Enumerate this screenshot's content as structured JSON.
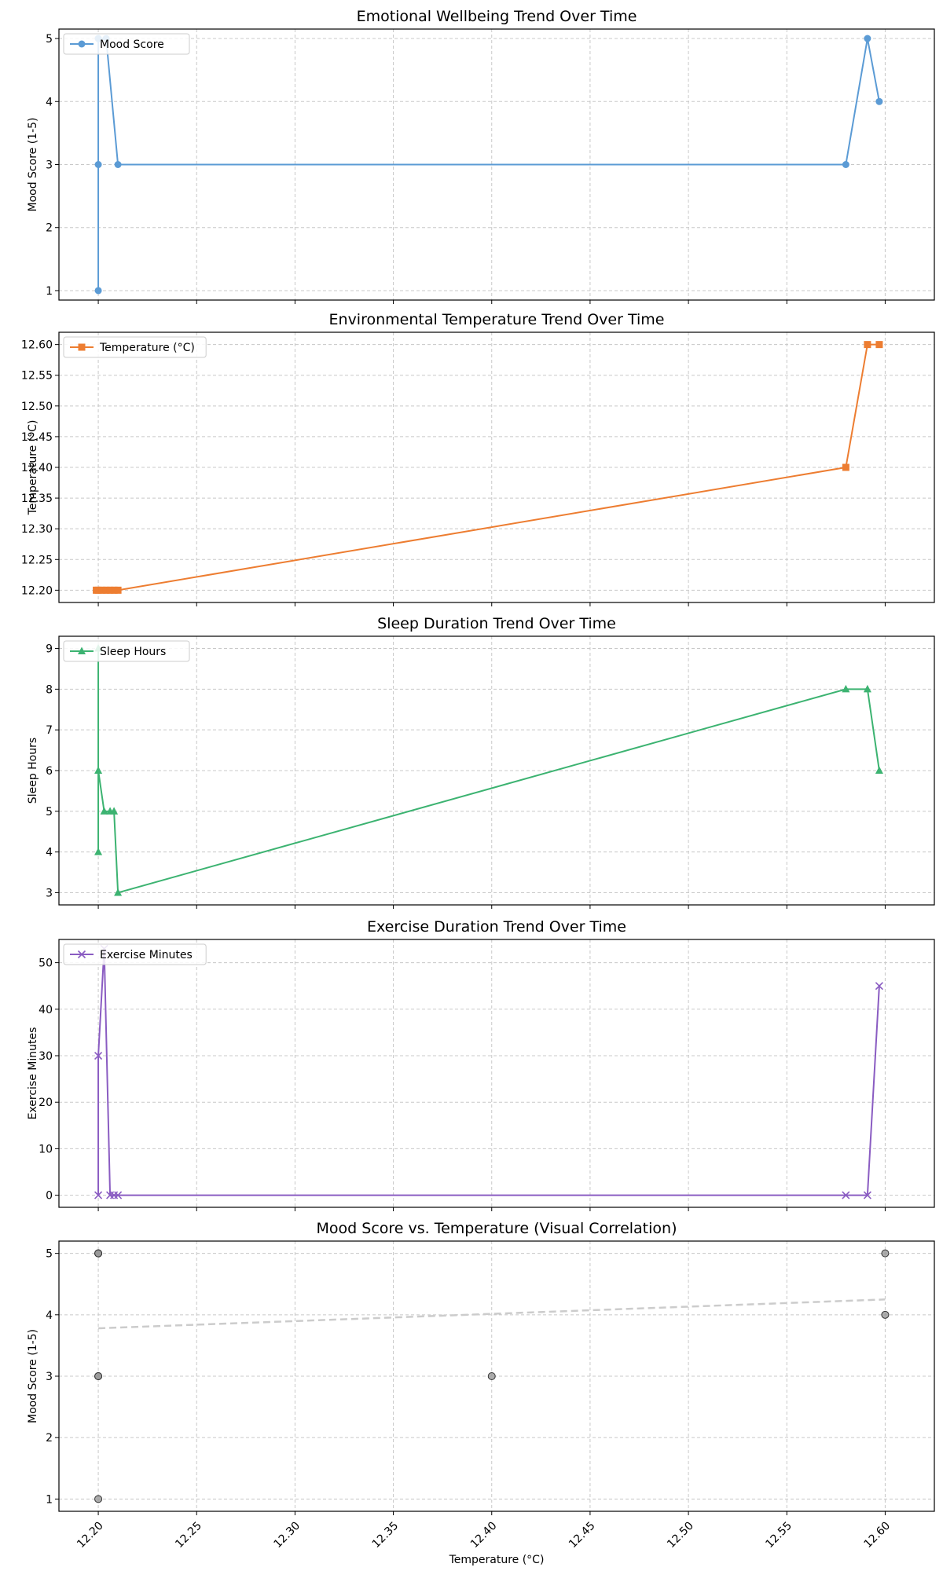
{
  "chart_data": [
    {
      "type": "line",
      "title": "Emotional Wellbeing Trend Over Time",
      "xlabel": "",
      "ylabel": "Mood Score (1-5)",
      "ylim": [
        0.85,
        5.15
      ],
      "yticks": [
        1,
        2,
        3,
        4,
        5
      ],
      "yticklabels": [
        "1",
        "2",
        "3",
        "4",
        "5"
      ],
      "grid": true,
      "legend": "upper left",
      "series": [
        {
          "name": "Mood Score",
          "color": "#5b9bd5",
          "marker": "circle",
          "x": [
            12.2,
            12.2,
            12.2,
            12.2,
            12.204,
            12.21,
            12.58,
            12.591,
            12.597
          ],
          "y": [
            5,
            1,
            3,
            5,
            5,
            3,
            3,
            5,
            4
          ]
        }
      ]
    },
    {
      "type": "line",
      "title": "Environmental Temperature Trend Over Time",
      "xlabel": "",
      "ylabel": "Temperature (°C)",
      "ylim": [
        12.18,
        12.62
      ],
      "yticks": [
        12.2,
        12.25,
        12.3,
        12.35,
        12.4,
        12.45,
        12.5,
        12.55,
        12.6
      ],
      "yticklabels": [
        "12.20",
        "12.25",
        "12.30",
        "12.35",
        "12.40",
        "12.45",
        "12.50",
        "12.55",
        "12.60"
      ],
      "grid": true,
      "legend": "upper left",
      "series": [
        {
          "name": "Temperature (°C)",
          "color": "#ed7d31",
          "marker": "square",
          "x": [
            12.199,
            12.2,
            12.202,
            12.204,
            12.206,
            12.208,
            12.21,
            12.58,
            12.591,
            12.597
          ],
          "y": [
            12.2,
            12.2,
            12.2,
            12.2,
            12.2,
            12.2,
            12.2,
            12.4,
            12.6,
            12.6
          ]
        }
      ]
    },
    {
      "type": "line",
      "title": "Sleep Duration Trend Over Time",
      "xlabel": "",
      "ylabel": "Sleep Hours",
      "ylim": [
        2.7,
        9.3
      ],
      "yticks": [
        3,
        4,
        5,
        6,
        7,
        8,
        9
      ],
      "yticklabels": [
        "3",
        "4",
        "5",
        "6",
        "7",
        "8",
        "9"
      ],
      "grid": true,
      "legend": "upper left",
      "series": [
        {
          "name": "Sleep Hours",
          "color": "#3cb371",
          "marker": "triangle",
          "x": [
            12.2,
            12.2,
            12.2,
            12.203,
            12.206,
            12.208,
            12.21,
            12.58,
            12.591,
            12.597
          ],
          "y": [
            9,
            4,
            6,
            5,
            5,
            5,
            3,
            8,
            8,
            6
          ]
        }
      ]
    },
    {
      "type": "line",
      "title": "Exercise Duration Trend Over Time",
      "xlabel": "",
      "ylabel": "Exercise Minutes",
      "ylim": [
        -2.6,
        55
      ],
      "yticks": [
        0,
        10,
        20,
        30,
        40,
        50
      ],
      "yticklabels": [
        "0",
        "10",
        "20",
        "30",
        "40",
        "50"
      ],
      "grid": true,
      "legend": "upper left",
      "series": [
        {
          "name": "Exercise Minutes",
          "color": "#8a5cc2",
          "marker": "x",
          "x": [
            12.2,
            12.2,
            12.203,
            12.206,
            12.208,
            12.21,
            12.58,
            12.591,
            12.597
          ],
          "y": [
            0,
            30,
            53,
            0,
            0,
            0,
            0,
            0,
            45
          ]
        }
      ]
    },
    {
      "type": "scatter",
      "title": "Mood Score vs. Temperature (Visual Correlation)",
      "xlabel": "Temperature (°C)",
      "ylabel": "Mood Score (1-5)",
      "ylim": [
        0.8,
        5.2
      ],
      "yticks": [
        1,
        2,
        3,
        4,
        5
      ],
      "yticklabels": [
        "1",
        "2",
        "3",
        "4",
        "5"
      ],
      "grid": true,
      "points": {
        "color": "#999999",
        "edge": "#333333",
        "x": [
          12.2,
          12.2,
          12.2,
          12.2,
          12.2,
          12.2,
          12.4,
          12.6,
          12.6
        ],
        "y": [
          1,
          3,
          3,
          5,
          5,
          5,
          3,
          5,
          4
        ]
      },
      "trendline": {
        "color": "#cccccc",
        "x": [
          12.2,
          12.6
        ],
        "y": [
          3.78,
          4.25
        ]
      }
    }
  ],
  "xaxis": {
    "xlim": [
      12.18,
      12.625
    ],
    "ticks": [
      12.2,
      12.25,
      12.3,
      12.35,
      12.4,
      12.45,
      12.5,
      12.55,
      12.6
    ],
    "ticklabels": [
      "12.20",
      "12.25",
      "12.30",
      "12.35",
      "12.40",
      "12.45",
      "12.50",
      "12.55",
      "12.60"
    ]
  }
}
